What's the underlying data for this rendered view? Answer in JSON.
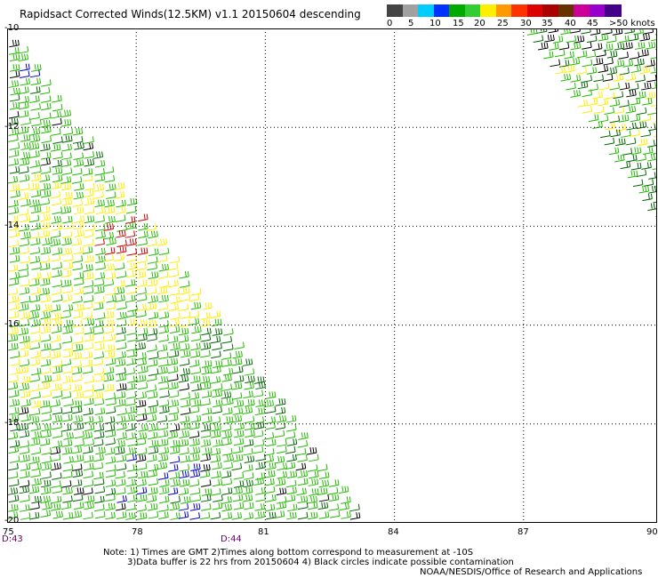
{
  "title": "Rapidsact Corrected Winds(12.5KM) v1.1 20150604 descending",
  "legend": {
    "labels": [
      "0",
      "5",
      "10",
      "15",
      "20",
      "25",
      "30",
      "35",
      "40",
      "45",
      ">50 knots"
    ],
    "colors": [
      "#444444",
      "#a0a0a0",
      "#00ccff",
      "#0033ff",
      "#00aa00",
      "#33cc33",
      "#ffee00",
      "#ff9900",
      "#ff3300",
      "#dd0000",
      "#aa0000",
      "#663300",
      "#cc0099",
      "#9900cc",
      "#440088"
    ]
  },
  "map": {
    "lat_labels": [
      "-10",
      "-12",
      "-14",
      "-16",
      "-18",
      "-20"
    ],
    "lon_labels": [
      "75",
      "78",
      "81",
      "84",
      "87",
      "90"
    ],
    "time_marks": [
      "D:43",
      "D:44"
    ],
    "wind_colors": {
      "green": "#22bb00",
      "dark_green": "#006600",
      "yellow": "#ffee00",
      "black": "#000000",
      "blue": "#0000cc",
      "red": "#cc0000"
    }
  },
  "notes": {
    "line1": "Note: 1) Times are GMT 2)Times along bottom correspond to measurement at -10S",
    "line2": "3)Data buffer is 22 hrs from 20150604 4) Black circles indicate possible contamination",
    "line3": "NOAA/NESDIS/Office of Research and Applications"
  }
}
